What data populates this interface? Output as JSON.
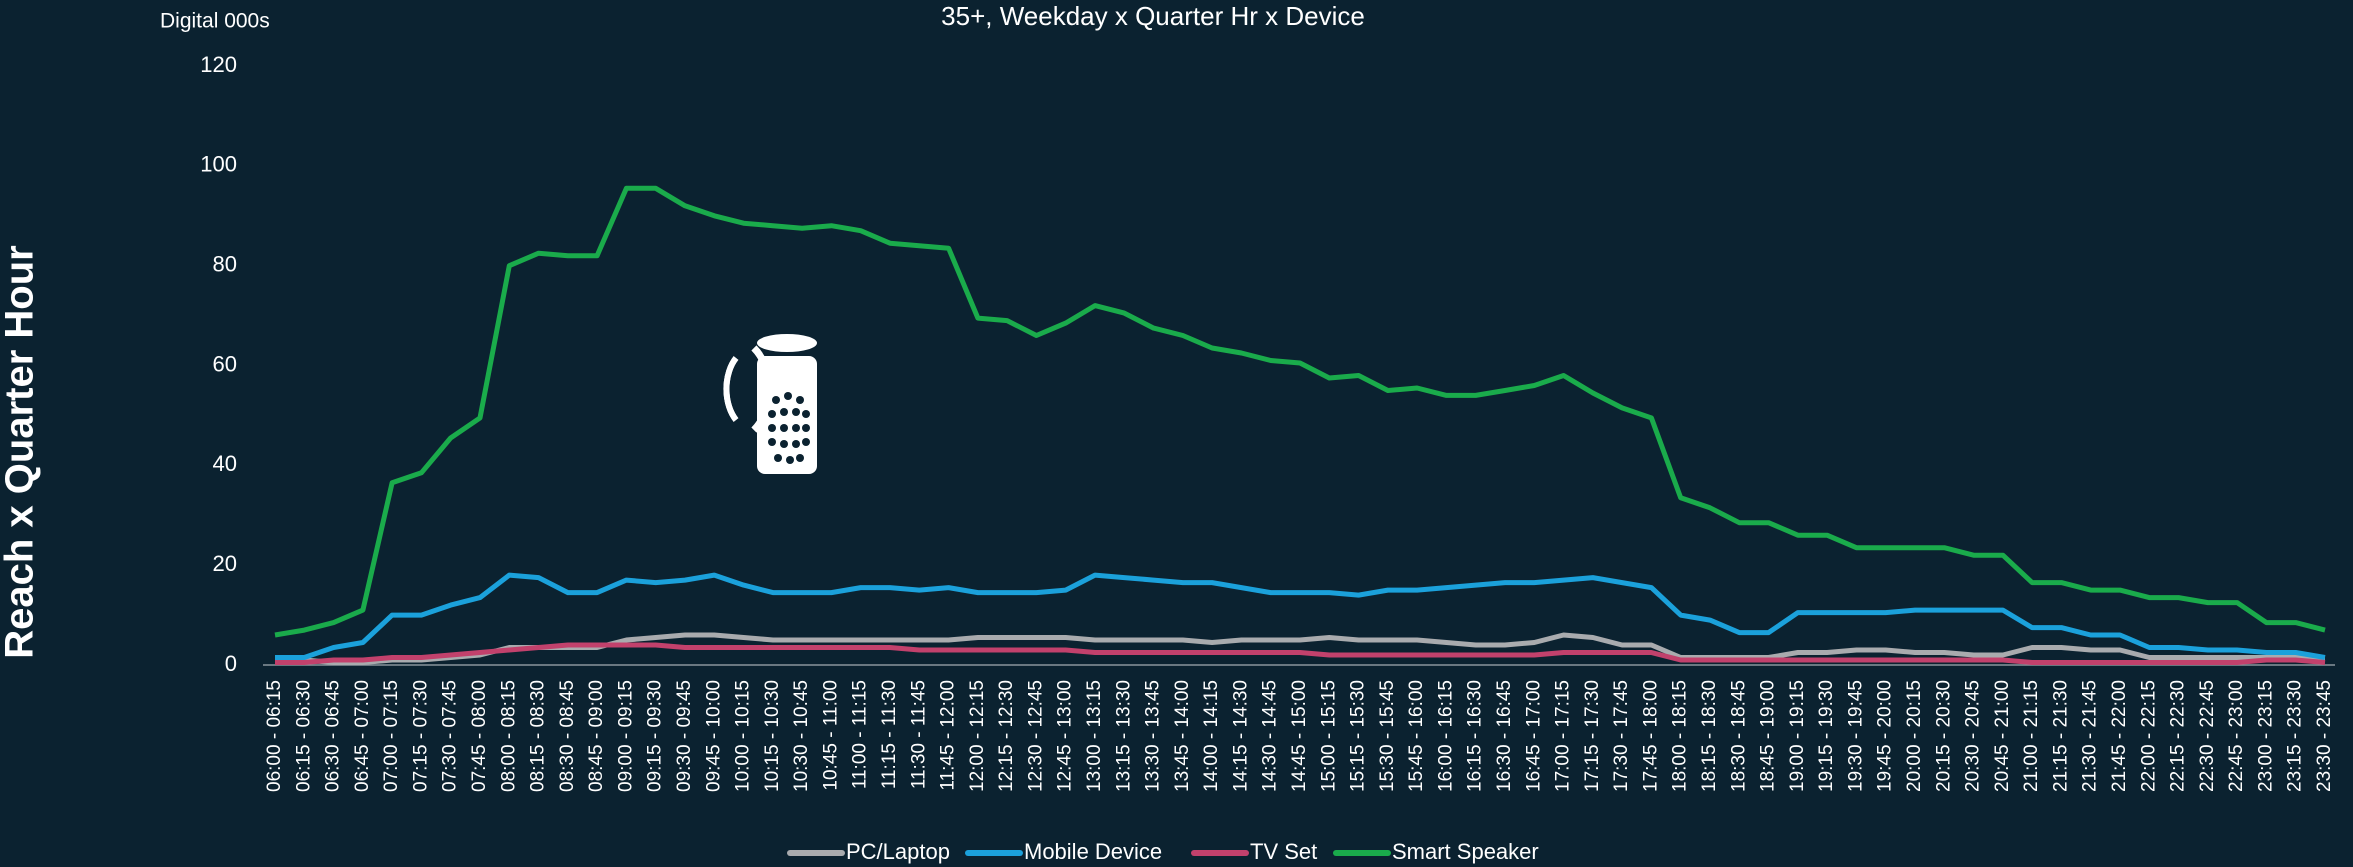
{
  "chart_data": {
    "type": "line",
    "title": "35+, Weekday x Quarter Hr x Device",
    "y_unit_label": "Digital 000s",
    "side_label": "Reach x Quarter Hour",
    "categories": [
      "06:00 - 06:15",
      "06:15 - 06:30",
      "06:30 - 06:45",
      "06:45 - 07:00",
      "07:00 - 07:15",
      "07:15 - 07:30",
      "07:30 - 07:45",
      "07:45 - 08:00",
      "08:00 - 08:15",
      "08:15 - 08:30",
      "08:30 - 08:45",
      "08:45 - 09:00",
      "09:00 - 09:15",
      "09:15 - 09:30",
      "09:30 - 09:45",
      "09:45 - 10:00",
      "10:00 - 10:15",
      "10:15 - 10:30",
      "10:30 - 10:45",
      "10:45 - 11:00",
      "11:00 - 11:15",
      "11:15 - 11:30",
      "11:30 - 11:45",
      "11:45 - 12:00",
      "12:00 - 12:15",
      "12:15 - 12:30",
      "12:30 - 12:45",
      "12:45 - 13:00",
      "13:00 - 13:15",
      "13:15 - 13:30",
      "13:30 - 13:45",
      "13:45 - 14:00",
      "14:00 - 14:15",
      "14:15 - 14:30",
      "14:30 - 14:45",
      "14:45 - 15:00",
      "15:00 - 15:15",
      "15:15 - 15:30",
      "15:30 - 15:45",
      "15:45 - 16:00",
      "16:00 - 16:15",
      "16:15 - 16:30",
      "16:30 - 16:45",
      "16:45 - 17:00",
      "17:00 - 17:15",
      "17:15 - 17:30",
      "17:30 - 17:45",
      "17:45 - 18:00",
      "18:00 - 18:15",
      "18:15 - 18:30",
      "18:30 - 18:45",
      "18:45 - 19:00",
      "19:00 - 19:15",
      "19:15 - 19:30",
      "19:30 - 19:45",
      "19:45 - 20:00",
      "20:00 - 20:15",
      "20:15 - 20:30",
      "20:30 - 20:45",
      "20:45 - 21:00",
      "21:00 - 21:15",
      "21:15 - 21:30",
      "21:30 - 21:45",
      "21:45 - 22:00",
      "22:00 - 22:15",
      "22:15 - 22:30",
      "22:30 - 22:45",
      "22:45 - 23:00",
      "23:00 - 23:15",
      "23:15 - 23:30",
      "23:30 - 23:45"
    ],
    "series": [
      {
        "name": "PC/Laptop",
        "color": "#a9abae",
        "values": [
          1,
          1,
          0.5,
          0.5,
          1,
          1,
          1.5,
          2,
          3.5,
          3.5,
          3.5,
          3.5,
          5,
          5.5,
          6,
          6,
          5.5,
          5,
          5,
          5,
          5,
          5,
          5,
          5,
          5.5,
          5.5,
          5.5,
          5.5,
          5,
          5,
          5,
          5,
          4.5,
          5,
          5,
          5,
          5.5,
          5,
          5,
          5,
          4.5,
          4,
          4,
          4.5,
          6,
          5.5,
          4,
          4,
          1.5,
          1.5,
          1.5,
          1.5,
          2.5,
          2.5,
          3,
          3,
          2.5,
          2.5,
          2,
          2,
          3.5,
          3.5,
          3,
          3,
          1.5,
          1.5,
          1.5,
          1.5,
          1.5,
          1.5,
          1.5
        ]
      },
      {
        "name": "Mobile Device",
        "color": "#1ba1db",
        "values": [
          1.5,
          1.5,
          3.5,
          4.5,
          10,
          10,
          12,
          13.5,
          18,
          17.5,
          14.5,
          14.5,
          17,
          16.5,
          17,
          18,
          16,
          14.5,
          14.5,
          14.5,
          15.5,
          15.5,
          15,
          15.5,
          14.5,
          14.5,
          14.5,
          15,
          18,
          17.5,
          17,
          16.5,
          16.5,
          15.5,
          14.5,
          14.5,
          14.5,
          14,
          15,
          15,
          15.5,
          16,
          16.5,
          16.5,
          17,
          17.5,
          16.5,
          15.5,
          10,
          9,
          6.5,
          6.5,
          10.5,
          10.5,
          10.5,
          10.5,
          11,
          11,
          11,
          11,
          7.5,
          7.5,
          6,
          6,
          3.5,
          3.5,
          3,
          3,
          2.5,
          2.5,
          1.5
        ]
      },
      {
        "name": "TV Set",
        "color": "#c2416c",
        "values": [
          0.5,
          0.5,
          1,
          1,
          1.5,
          1.5,
          2,
          2.5,
          3,
          3.5,
          4,
          4,
          4,
          4,
          3.5,
          3.5,
          3.5,
          3.5,
          3.5,
          3.5,
          3.5,
          3.5,
          3,
          3,
          3,
          3,
          3,
          3,
          2.5,
          2.5,
          2.5,
          2.5,
          2.5,
          2.5,
          2.5,
          2.5,
          2,
          2,
          2,
          2,
          2,
          2,
          2,
          2,
          2.5,
          2.5,
          2.5,
          2.5,
          1,
          1,
          1,
          1,
          1,
          1,
          1,
          1,
          1,
          1,
          1,
          1,
          0.5,
          0.5,
          0.5,
          0.5,
          0.5,
          0.5,
          0.5,
          0.5,
          1,
          1,
          0.5
        ]
      },
      {
        "name": "Smart Speaker",
        "color": "#1aab4b",
        "values": [
          6,
          7,
          8.5,
          11,
          36.5,
          38.5,
          45.5,
          49.5,
          80,
          82.5,
          82,
          82,
          95.5,
          95.5,
          92,
          90,
          88.5,
          88,
          87.5,
          88,
          87,
          84.5,
          84,
          83.5,
          69.5,
          69,
          66,
          68.5,
          72,
          70.5,
          67.5,
          66,
          63.5,
          62.5,
          61,
          60.5,
          57.5,
          58,
          55,
          55.5,
          54,
          54,
          55,
          56,
          58,
          54.5,
          51.5,
          49.5,
          33.5,
          31.5,
          28.5,
          28.5,
          26,
          26,
          23.5,
          23.5,
          23.5,
          23.5,
          22,
          22,
          16.5,
          16.5,
          15,
          15,
          13.5,
          13.5,
          12.5,
          12.5,
          8.5,
          8.5,
          7
        ]
      }
    ],
    "ylim": [
      0,
      120
    ],
    "yticks": [
      0,
      20,
      40,
      60,
      80,
      100,
      120
    ],
    "grid": false,
    "legend": "bottom"
  }
}
